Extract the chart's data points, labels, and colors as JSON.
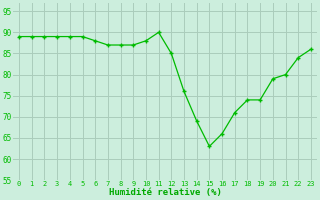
{
  "x": [
    0,
    1,
    2,
    3,
    4,
    5,
    6,
    7,
    8,
    9,
    10,
    11,
    12,
    13,
    14,
    15,
    16,
    17,
    18,
    19,
    20,
    21,
    22,
    23
  ],
  "y": [
    89,
    89,
    89,
    89,
    89,
    89,
    88,
    87,
    87,
    87,
    88,
    90,
    85,
    76,
    69,
    63,
    66,
    71,
    74,
    74,
    79,
    80,
    84,
    86
  ],
  "line_color": "#00bb00",
  "marker_color": "#00bb00",
  "bg_color": "#cceedd",
  "grid_color": "#aaccbb",
  "xlabel": "Humidité relative (%)",
  "xlabel_color": "#00aa00",
  "tick_color": "#00bb00",
  "ylim": [
    55,
    97
  ],
  "yticks": [
    55,
    60,
    65,
    70,
    75,
    80,
    85,
    90,
    95
  ],
  "xlim": [
    -0.5,
    23.5
  ],
  "xticks": [
    0,
    1,
    2,
    3,
    4,
    5,
    6,
    7,
    8,
    9,
    10,
    11,
    12,
    13,
    14,
    15,
    16,
    17,
    18,
    19,
    20,
    21,
    22,
    23
  ],
  "xtick_labels": [
    "0",
    "1",
    "2",
    "3",
    "4",
    "5",
    "6",
    "7",
    "8",
    "9",
    "10",
    "11",
    "12",
    "13",
    "14",
    "15",
    "16",
    "17",
    "18",
    "19",
    "20",
    "21",
    "22",
    "23"
  ]
}
